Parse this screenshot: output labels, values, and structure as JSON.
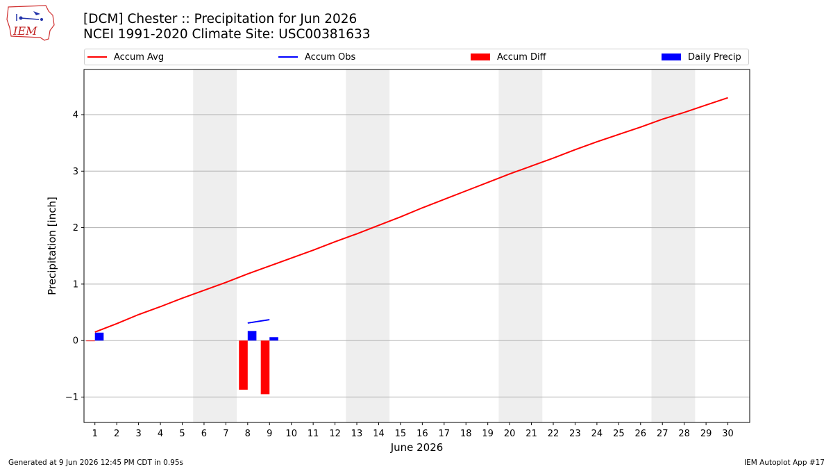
{
  "header": {
    "logo_text": "IEM",
    "title_line1": "[DCM] Chester :: Precipitation for Jun 2026",
    "title_line2": "NCEI 1991-2020 Climate Site: USC00381633"
  },
  "footer": {
    "left": "Generated at 9 Jun 2026 12:45 PM CDT in 0.95s",
    "right": "IEM Autoplot App #17"
  },
  "colors": {
    "accum_avg": "#ff0000",
    "accum_obs": "#0000ff",
    "accum_diff": "#ff0000",
    "daily_precip": "#0000ff",
    "weekend_shade": "#eeeeee",
    "grid": "#b0b0b0"
  },
  "chart_data": {
    "type": "line",
    "title": "[DCM] Chester :: Precipitation for Jun 2026",
    "subtitle": "NCEI 1991-2020 Climate Site: USC00381633",
    "xlabel": "June 2026",
    "ylabel": "Precipitation [inch]",
    "xlim": [
      0.5,
      31.0
    ],
    "ylim": [
      -1.45,
      4.8
    ],
    "x_ticks": [
      1,
      2,
      3,
      4,
      5,
      6,
      7,
      8,
      9,
      10,
      11,
      12,
      13,
      14,
      15,
      16,
      17,
      18,
      19,
      20,
      21,
      22,
      23,
      24,
      25,
      26,
      27,
      28,
      29,
      30
    ],
    "y_ticks": [
      -1,
      0,
      1,
      2,
      3,
      4
    ],
    "grid": "horizontal",
    "legend_position": "top",
    "weekend_shading": [
      [
        5.5,
        7.5
      ],
      [
        12.5,
        14.5
      ],
      [
        19.5,
        21.5
      ],
      [
        26.5,
        28.5
      ]
    ],
    "series": [
      {
        "name": "Accum Avg",
        "kind": "line",
        "x": [
          1,
          2,
          3,
          4,
          5,
          6,
          7,
          8,
          9,
          10,
          11,
          12,
          13,
          14,
          15,
          16,
          17,
          18,
          19,
          20,
          21,
          22,
          23,
          24,
          25,
          26,
          27,
          28,
          29,
          30
        ],
        "values": [
          0.15,
          0.3,
          0.46,
          0.6,
          0.75,
          0.89,
          1.03,
          1.18,
          1.32,
          1.46,
          1.6,
          1.75,
          1.89,
          2.04,
          2.19,
          2.35,
          2.5,
          2.65,
          2.8,
          2.95,
          3.09,
          3.23,
          3.38,
          3.52,
          3.65,
          3.78,
          3.92,
          4.04,
          4.17,
          4.3
        ]
      },
      {
        "name": "Accum Obs",
        "kind": "line",
        "x": [
          8,
          9
        ],
        "values": [
          0.31,
          0.37
        ]
      },
      {
        "name": "Accum Diff",
        "kind": "bar",
        "x": [
          1,
          8,
          9
        ],
        "values": [
          -0.01,
          -0.87,
          -0.95
        ]
      },
      {
        "name": "Daily Precip",
        "kind": "bar",
        "x": [
          1,
          8,
          9
        ],
        "values": [
          0.14,
          0.17,
          0.06
        ]
      }
    ]
  }
}
